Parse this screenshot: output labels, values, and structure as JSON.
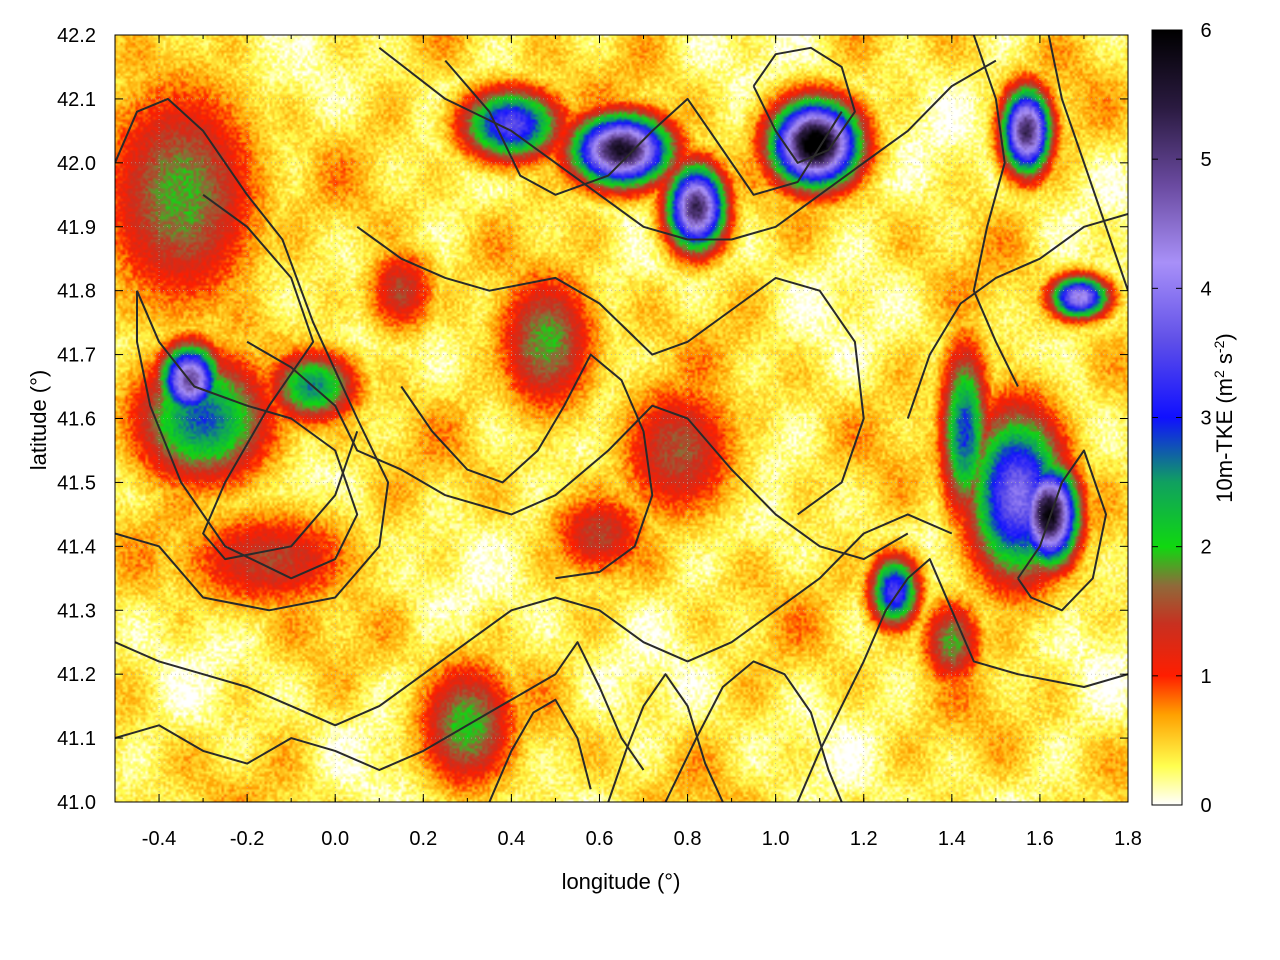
{
  "chart_data": {
    "type": "heatmap",
    "title": "",
    "xlabel": "longitude (°)",
    "ylabel": "latitude (°)",
    "colorbar_label": "10m-TKE (m² s⁻²)",
    "colorbar_label_parts": {
      "prefix": "10m-TKE (m",
      "sup1": "2",
      "mid": " s",
      "sup2": "-2",
      "suffix": ")"
    },
    "xlim": [
      -0.5,
      1.8
    ],
    "ylim": [
      41.0,
      42.2
    ],
    "clim": [
      0,
      6
    ],
    "x_ticks": [
      "-0.4",
      "-0.2",
      "0.0",
      "0.2",
      "0.4",
      "0.6",
      "0.8",
      "1.0",
      "1.2",
      "1.4",
      "1.6",
      "1.8"
    ],
    "y_ticks": [
      "41.0",
      "41.1",
      "41.2",
      "41.3",
      "41.4",
      "41.5",
      "41.6",
      "41.7",
      "41.8",
      "41.9",
      "42.0",
      "42.1",
      "42.2"
    ],
    "colorbar_ticks": [
      "0",
      "1",
      "2",
      "3",
      "4",
      "5",
      "6"
    ],
    "grid": true,
    "colormap": [
      {
        "value": 0.0,
        "color": "#ffffff"
      },
      {
        "value": 0.3,
        "color": "#ffff50"
      },
      {
        "value": 0.7,
        "color": "#ffa000"
      },
      {
        "value": 1.0,
        "color": "#ff1e00"
      },
      {
        "value": 1.4,
        "color": "#c83020"
      },
      {
        "value": 1.7,
        "color": "#8f6a3a"
      },
      {
        "value": 2.0,
        "color": "#10d810"
      },
      {
        "value": 2.5,
        "color": "#10a060"
      },
      {
        "value": 3.0,
        "color": "#1010ff"
      },
      {
        "value": 3.6,
        "color": "#6050e8"
      },
      {
        "value": 4.2,
        "color": "#a890f8"
      },
      {
        "value": 4.8,
        "color": "#6a4aa0"
      },
      {
        "value": 5.4,
        "color": "#2a1a40"
      },
      {
        "value": 6.0,
        "color": "#000000"
      }
    ],
    "hotspots": [
      {
        "lon": -0.33,
        "lat": 41.66,
        "peak": 4.6,
        "rx": 0.06,
        "ry": 0.05
      },
      {
        "lon": -0.3,
        "lat": 41.6,
        "peak": 2.5,
        "rx": 0.14,
        "ry": 0.09
      },
      {
        "lon": -0.05,
        "lat": 41.65,
        "peak": 2.3,
        "rx": 0.09,
        "ry": 0.05
      },
      {
        "lon": -0.35,
        "lat": 41.95,
        "peak": 1.6,
        "rx": 0.16,
        "ry": 0.16
      },
      {
        "lon": 0.4,
        "lat": 42.06,
        "peak": 3.3,
        "rx": 0.1,
        "ry": 0.05
      },
      {
        "lon": 0.65,
        "lat": 42.02,
        "peak": 5.4,
        "rx": 0.1,
        "ry": 0.05
      },
      {
        "lon": 0.82,
        "lat": 41.93,
        "peak": 5.0,
        "rx": 0.06,
        "ry": 0.06
      },
      {
        "lon": 1.09,
        "lat": 42.03,
        "peak": 6.0,
        "rx": 0.09,
        "ry": 0.06
      },
      {
        "lon": 1.57,
        "lat": 42.05,
        "peak": 5.0,
        "rx": 0.05,
        "ry": 0.06
      },
      {
        "lon": 1.69,
        "lat": 41.79,
        "peak": 4.0,
        "rx": 0.06,
        "ry": 0.03
      },
      {
        "lon": 1.55,
        "lat": 41.48,
        "peak": 3.6,
        "rx": 0.1,
        "ry": 0.12
      },
      {
        "lon": 1.62,
        "lat": 41.45,
        "peak": 5.6,
        "rx": 0.06,
        "ry": 0.07
      },
      {
        "lon": 1.43,
        "lat": 41.58,
        "peak": 2.6,
        "rx": 0.05,
        "ry": 0.12
      },
      {
        "lon": 1.27,
        "lat": 41.33,
        "peak": 3.2,
        "rx": 0.05,
        "ry": 0.05
      },
      {
        "lon": 0.48,
        "lat": 41.72,
        "peak": 1.6,
        "rx": 0.1,
        "ry": 0.1
      },
      {
        "lon": 0.78,
        "lat": 41.55,
        "peak": 1.3,
        "rx": 0.12,
        "ry": 0.1
      },
      {
        "lon": 0.3,
        "lat": 41.12,
        "peak": 1.7,
        "rx": 0.1,
        "ry": 0.09
      },
      {
        "lon": 0.15,
        "lat": 41.8,
        "peak": 1.2,
        "rx": 0.07,
        "ry": 0.06
      },
      {
        "lon": 0.6,
        "lat": 41.42,
        "peak": 1.2,
        "rx": 0.1,
        "ry": 0.06
      },
      {
        "lon": -0.15,
        "lat": 41.38,
        "peak": 1.2,
        "rx": 0.18,
        "ry": 0.07
      },
      {
        "lon": 1.4,
        "lat": 41.25,
        "peak": 1.6,
        "rx": 0.06,
        "ry": 0.06
      }
    ],
    "contours": [
      [
        [
          -0.5,
          42.0
        ],
        [
          -0.45,
          42.08
        ],
        [
          -0.38,
          42.1
        ],
        [
          -0.3,
          42.05
        ],
        [
          -0.2,
          41.95
        ],
        [
          -0.12,
          41.88
        ],
        [
          -0.05,
          41.75
        ],
        [
          0.05,
          41.6
        ],
        [
          0.12,
          41.5
        ],
        [
          0.1,
          41.4
        ],
        [
          0.0,
          41.32
        ],
        [
          -0.15,
          41.3
        ],
        [
          -0.3,
          41.32
        ],
        [
          -0.4,
          41.4
        ],
        [
          -0.5,
          41.42
        ]
      ],
      [
        [
          -0.3,
          41.95
        ],
        [
          -0.2,
          41.9
        ],
        [
          -0.1,
          41.82
        ],
        [
          -0.05,
          41.72
        ],
        [
          -0.15,
          41.62
        ],
        [
          -0.25,
          41.5
        ],
        [
          -0.3,
          41.42
        ],
        [
          -0.25,
          41.38
        ],
        [
          -0.1,
          41.4
        ],
        [
          0.0,
          41.48
        ],
        [
          0.05,
          41.58
        ]
      ],
      [
        [
          0.1,
          42.18
        ],
        [
          0.25,
          42.1
        ],
        [
          0.4,
          42.05
        ],
        [
          0.5,
          42.0
        ],
        [
          0.6,
          41.95
        ],
        [
          0.7,
          41.9
        ],
        [
          0.8,
          41.88
        ],
        [
          0.9,
          41.88
        ],
        [
          1.0,
          41.9
        ],
        [
          1.1,
          41.95
        ],
        [
          1.2,
          42.0
        ],
        [
          1.3,
          42.05
        ],
        [
          1.4,
          42.12
        ],
        [
          1.5,
          42.16
        ]
      ],
      [
        [
          0.25,
          42.16
        ],
        [
          0.35,
          42.08
        ],
        [
          0.42,
          41.98
        ],
        [
          0.5,
          41.95
        ],
        [
          0.62,
          41.98
        ],
        [
          0.72,
          42.05
        ],
        [
          0.8,
          42.1
        ],
        [
          0.88,
          42.02
        ],
        [
          0.95,
          41.95
        ],
        [
          1.05,
          41.97
        ],
        [
          1.15,
          42.08
        ]
      ],
      [
        [
          0.05,
          41.9
        ],
        [
          0.15,
          41.85
        ],
        [
          0.25,
          41.82
        ],
        [
          0.35,
          41.8
        ],
        [
          0.5,
          41.82
        ],
        [
          0.6,
          41.78
        ],
        [
          0.72,
          41.7
        ],
        [
          0.8,
          41.72
        ],
        [
          0.92,
          41.78
        ],
        [
          1.0,
          41.82
        ],
        [
          1.1,
          41.8
        ],
        [
          1.18,
          41.72
        ],
        [
          1.2,
          41.6
        ],
        [
          1.15,
          41.5
        ],
        [
          1.05,
          41.45
        ]
      ],
      [
        [
          -0.2,
          41.72
        ],
        [
          -0.1,
          41.68
        ],
        [
          0.0,
          41.62
        ],
        [
          0.05,
          41.55
        ],
        [
          0.15,
          41.52
        ],
        [
          0.25,
          41.48
        ],
        [
          0.4,
          41.45
        ],
        [
          0.5,
          41.48
        ],
        [
          0.62,
          41.55
        ],
        [
          0.72,
          41.62
        ],
        [
          0.8,
          41.6
        ],
        [
          0.9,
          41.52
        ],
        [
          1.0,
          41.45
        ],
        [
          1.1,
          41.4
        ],
        [
          1.2,
          41.38
        ],
        [
          1.3,
          41.42
        ]
      ],
      [
        [
          0.15,
          41.65
        ],
        [
          0.22,
          41.58
        ],
        [
          0.3,
          41.52
        ],
        [
          0.38,
          41.5
        ],
        [
          0.46,
          41.55
        ],
        [
          0.52,
          41.62
        ],
        [
          0.58,
          41.7
        ],
        [
          0.65,
          41.66
        ],
        [
          0.7,
          41.58
        ],
        [
          0.72,
          41.48
        ],
        [
          0.68,
          41.4
        ],
        [
          0.6,
          41.36
        ],
        [
          0.5,
          41.35
        ]
      ],
      [
        [
          -0.5,
          41.25
        ],
        [
          -0.4,
          41.22
        ],
        [
          -0.3,
          41.2
        ],
        [
          -0.2,
          41.18
        ],
        [
          -0.1,
          41.15
        ],
        [
          0.0,
          41.12
        ],
        [
          0.1,
          41.15
        ],
        [
          0.2,
          41.2
        ],
        [
          0.3,
          41.25
        ],
        [
          0.4,
          41.3
        ],
        [
          0.5,
          41.32
        ],
        [
          0.6,
          41.3
        ],
        [
          0.7,
          41.25
        ],
        [
          0.8,
          41.22
        ],
        [
          0.9,
          41.25
        ],
        [
          1.0,
          41.3
        ],
        [
          1.1,
          41.35
        ],
        [
          1.2,
          41.42
        ],
        [
          1.3,
          41.45
        ],
        [
          1.4,
          41.42
        ]
      ],
      [
        [
          -0.5,
          41.1
        ],
        [
          -0.4,
          41.12
        ],
        [
          -0.3,
          41.08
        ],
        [
          -0.2,
          41.06
        ],
        [
          -0.1,
          41.1
        ],
        [
          0.0,
          41.08
        ],
        [
          0.1,
          41.05
        ],
        [
          0.2,
          41.08
        ],
        [
          0.3,
          41.12
        ],
        [
          0.4,
          41.16
        ],
        [
          0.5,
          41.2
        ],
        [
          0.55,
          41.25
        ],
        [
          0.6,
          41.18
        ],
        [
          0.65,
          41.1
        ],
        [
          0.7,
          41.05
        ]
      ],
      [
        [
          0.35,
          41.0
        ],
        [
          0.4,
          41.08
        ],
        [
          0.45,
          41.14
        ],
        [
          0.5,
          41.16
        ],
        [
          0.55,
          41.1
        ],
        [
          0.58,
          41.02
        ]
      ],
      [
        [
          0.62,
          41.0
        ],
        [
          0.66,
          41.08
        ],
        [
          0.7,
          41.15
        ],
        [
          0.75,
          41.2
        ],
        [
          0.8,
          41.15
        ],
        [
          0.84,
          41.06
        ],
        [
          0.88,
          41.0
        ]
      ],
      [
        [
          0.75,
          41.0
        ],
        [
          0.82,
          41.1
        ],
        [
          0.88,
          41.18
        ],
        [
          0.95,
          41.22
        ],
        [
          1.02,
          41.2
        ],
        [
          1.08,
          41.14
        ],
        [
          1.12,
          41.05
        ],
        [
          1.15,
          41.0
        ]
      ],
      [
        [
          1.05,
          41.0
        ],
        [
          1.1,
          41.08
        ],
        [
          1.15,
          41.15
        ],
        [
          1.2,
          41.22
        ],
        [
          1.25,
          41.3
        ],
        [
          1.3,
          41.35
        ],
        [
          1.35,
          41.38
        ],
        [
          1.4,
          41.3
        ],
        [
          1.45,
          41.22
        ],
        [
          1.55,
          41.2
        ],
        [
          1.7,
          41.18
        ],
        [
          1.8,
          41.2
        ]
      ],
      [
        [
          1.3,
          41.6
        ],
        [
          1.35,
          41.7
        ],
        [
          1.42,
          41.78
        ],
        [
          1.5,
          41.82
        ],
        [
          1.6,
          41.85
        ],
        [
          1.7,
          41.9
        ],
        [
          1.8,
          41.92
        ]
      ],
      [
        [
          1.45,
          42.2
        ],
        [
          1.5,
          42.1
        ],
        [
          1.52,
          42.0
        ],
        [
          1.48,
          41.9
        ],
        [
          1.45,
          41.8
        ],
        [
          1.5,
          41.72
        ],
        [
          1.55,
          41.65
        ]
      ],
      [
        [
          1.62,
          42.2
        ],
        [
          1.65,
          42.1
        ],
        [
          1.7,
          42.0
        ],
        [
          1.75,
          41.9
        ],
        [
          1.8,
          41.8
        ]
      ],
      [
        [
          -0.45,
          41.8
        ],
        [
          -0.4,
          41.72
        ],
        [
          -0.32,
          41.65
        ],
        [
          -0.2,
          41.62
        ],
        [
          -0.1,
          41.6
        ],
        [
          0.0,
          41.55
        ],
        [
          0.05,
          41.45
        ],
        [
          0.0,
          41.38
        ],
        [
          -0.1,
          41.35
        ],
        [
          -0.25,
          41.4
        ],
        [
          -0.35,
          41.5
        ],
        [
          -0.42,
          41.62
        ],
        [
          -0.45,
          41.72
        ],
        [
          -0.45,
          41.8
        ]
      ],
      [
        [
          1.55,
          41.35
        ],
        [
          1.6,
          41.4
        ],
        [
          1.65,
          41.5
        ],
        [
          1.7,
          41.55
        ],
        [
          1.75,
          41.45
        ],
        [
          1.72,
          41.35
        ],
        [
          1.65,
          41.3
        ],
        [
          1.58,
          41.32
        ],
        [
          1.55,
          41.35
        ]
      ],
      [
        [
          0.95,
          42.12
        ],
        [
          1.0,
          42.05
        ],
        [
          1.05,
          42.0
        ],
        [
          1.12,
          42.02
        ],
        [
          1.18,
          42.08
        ],
        [
          1.15,
          42.15
        ],
        [
          1.08,
          42.18
        ],
        [
          1.0,
          42.17
        ],
        [
          0.95,
          42.12
        ]
      ]
    ]
  }
}
